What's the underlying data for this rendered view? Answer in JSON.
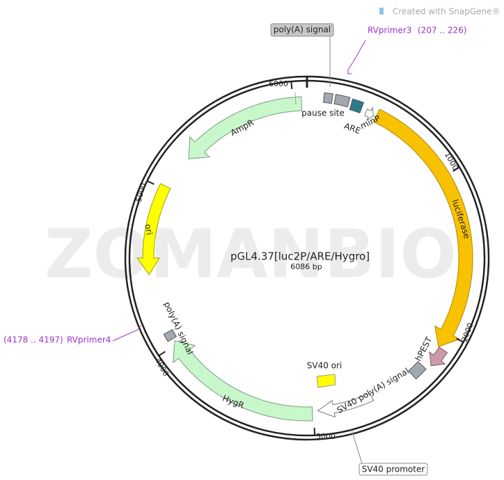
{
  "logo": "Created with SnapGene®",
  "watermark": "ZOMANBIO",
  "map": {
    "name": "pGL4.37[luc2P/ARE/Hygro]",
    "size": "6086 bp",
    "ticks": [
      "1000",
      "2000",
      "3000",
      "4000",
      "5000",
      "6000"
    ]
  },
  "features": [
    "luciferase",
    "AmpR",
    "ori",
    "HygR",
    "hPEST",
    "SV40 poly(A) signal",
    "SV40 ori",
    "pause site",
    "ARE",
    "minP",
    "poly(A) signal"
  ],
  "callouts": [
    "poly(A) signal",
    "SV40 promoter"
  ],
  "primers": [
    {
      "label": "RVprimer3",
      "range": "(207 .. 226)"
    },
    {
      "label": "RVprimer4",
      "range": "(4178 .. 4197)"
    }
  ]
}
